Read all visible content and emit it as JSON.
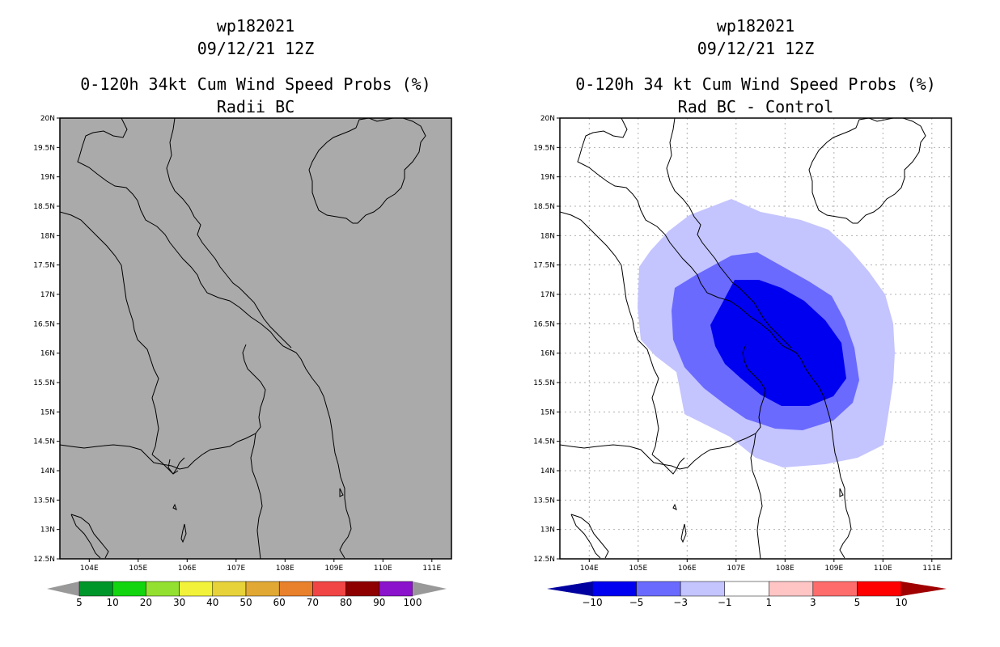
{
  "panels": [
    {
      "id": "left",
      "storm_id": "wp182021",
      "datetime": "09/12/21 12Z",
      "product": "0-120h 34kt Cum Wind Speed Probs (%)",
      "subtitle": "Radii BC",
      "background_color": "#aaaaaa",
      "grid": false,
      "colorbar": {
        "labels": [
          "5",
          "10",
          "20",
          "30",
          "40",
          "50",
          "60",
          "70",
          "80",
          "90",
          "100"
        ],
        "colors": [
          "#00962a",
          "#12d40f",
          "#94e030",
          "#f2f23a",
          "#e7d23a",
          "#e1a934",
          "#e9802b",
          "#f04544",
          "#8e0000",
          "#8c13cc"
        ],
        "end_colors": [
          "#999999",
          "#999999"
        ]
      }
    },
    {
      "id": "right",
      "storm_id": "wp182021",
      "datetime": "09/12/21 12Z",
      "product": "0-120h 34 kt Cum Wind Speed Probs (%)",
      "subtitle": "Rad BC - Control",
      "background_color": "#ffffff",
      "grid": true,
      "difference_field": {
        "levels": [
          -5,
          -3,
          -1
        ],
        "colors": [
          "#0000f0",
          "#6a6aff",
          "#c4c4ff"
        ]
      },
      "colorbar": {
        "labels": [
          "-10",
          "-5",
          "-3",
          "-1",
          "1",
          "3",
          "5",
          "10"
        ],
        "colors": [
          "#0000f0",
          "#6a6aff",
          "#c4c4ff",
          "#ffffff",
          "#ffc5c5",
          "#ff6c6c",
          "#ff0000"
        ],
        "end_colors": [
          "#0000a0",
          "#a00000"
        ]
      }
    }
  ],
  "axes": {
    "lat_labels": [
      "20N",
      "19.5N",
      "19N",
      "18.5N",
      "18N",
      "17.5N",
      "17N",
      "16.5N",
      "16N",
      "15.5N",
      "15N",
      "14.5N",
      "14N",
      "13.5N",
      "13N",
      "12.5N"
    ],
    "lat_range": [
      12.5,
      20.0
    ],
    "lon_labels": [
      "104E",
      "105E",
      "106E",
      "107E",
      "108E",
      "109E",
      "110E",
      "111E"
    ],
    "lon_range": [
      103.4,
      111.4
    ]
  }
}
